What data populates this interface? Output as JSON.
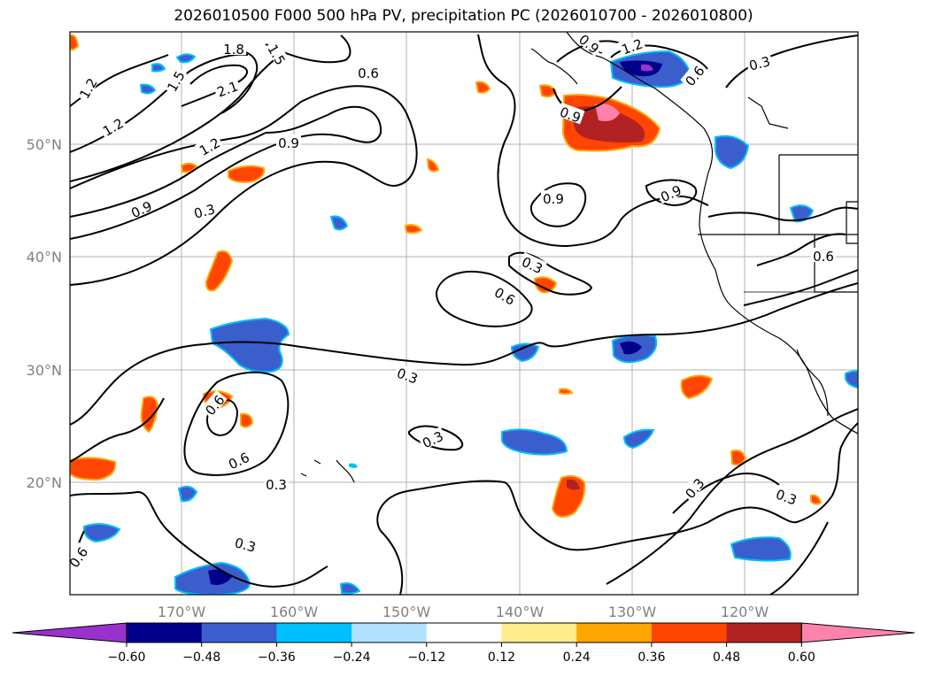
{
  "title": "2026010500 F000 500 hPa PV, precipitation PC (2026010700 - 2026010800)",
  "map": {
    "lon_labels": [
      "170°W",
      "160°W",
      "150°W",
      "140°W",
      "130°W",
      "120°W"
    ],
    "lat_labels": [
      "50°N",
      "40°N",
      "30°N",
      "20°N"
    ],
    "contour_labels": [
      "1.8",
      "1.5",
      "1.2",
      "2.1",
      "1.5",
      "1.2",
      "1.2",
      "0.9",
      "0.9",
      "0.6",
      "0.3",
      "0.9",
      "1.2",
      "0.9",
      "0.6",
      "0.3",
      "0.3",
      "0.9",
      "0.6",
      "0.9",
      "0.6",
      "0.6",
      "0.3",
      "0.3",
      "0.3",
      "0.3",
      "0.6",
      "0.6",
      "0.3",
      "0.3"
    ]
  },
  "colorbar": {
    "ticks": [
      "−0.60",
      "−0.48",
      "−0.36",
      "−0.24",
      "−0.12",
      "0.12",
      "0.24",
      "0.36",
      "0.48",
      "0.60"
    ],
    "colors": [
      "#9932cc",
      "#00008b",
      "#3a5fcd",
      "#00bfff",
      "#b0e2ff",
      "#ffffff",
      "#ffec8b",
      "#ffa500",
      "#ff4500",
      "#b22222",
      "#ff82ab"
    ]
  }
}
